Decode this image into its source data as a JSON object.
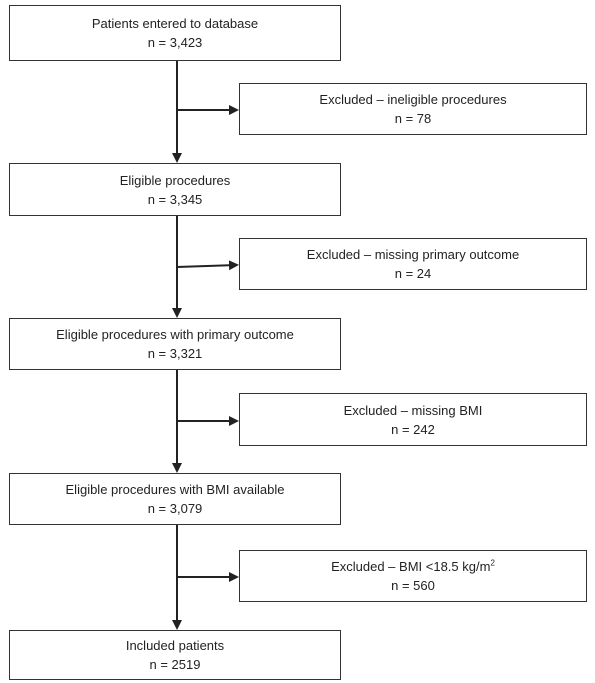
{
  "main_steps": [
    {
      "label": "Patients entered to database",
      "count": "n = 3,423"
    },
    {
      "label": "Eligible procedures",
      "count": "n = 3,345"
    },
    {
      "label": "Eligible procedures with primary outcome",
      "count": "n = 3,321"
    },
    {
      "label": "Eligible procedures with BMI available",
      "count": "n = 3,079"
    },
    {
      "label": "Included patients",
      "count": "n = 2519"
    }
  ],
  "exclusions": [
    {
      "label": "Excluded – ineligible procedures",
      "count": "n = 78"
    },
    {
      "label": "Excluded – missing primary outcome",
      "count": "n = 24"
    },
    {
      "label": "Excluded – missing BMI",
      "count": "n = 242"
    },
    {
      "label_prefix": "Excluded – BMI <18.5 kg/m",
      "label_sup": "2",
      "count": "n = 560"
    }
  ]
}
